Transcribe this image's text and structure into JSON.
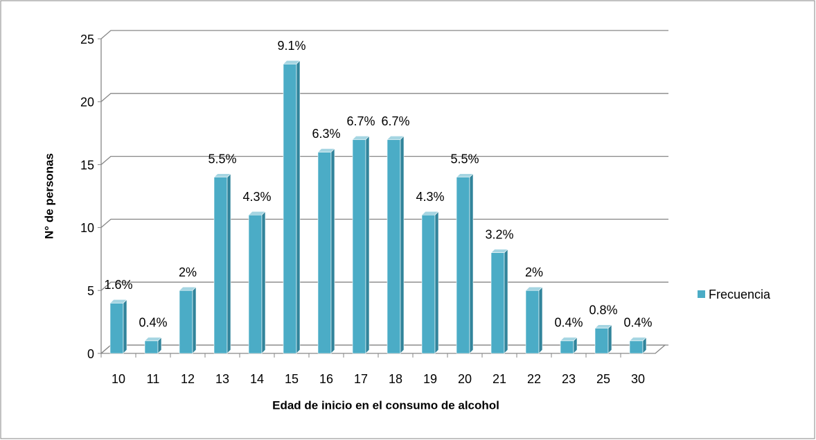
{
  "chart_data": {
    "type": "bar3d",
    "x_label": "Edad de inicio en el consumo de alcohol",
    "y_label": "N° de personas",
    "categories": [
      "10",
      "11",
      "12",
      "13",
      "14",
      "15",
      "16",
      "17",
      "18",
      "19",
      "20",
      "21",
      "22",
      "23",
      "25",
      "30"
    ],
    "series": [
      {
        "name": "Frecuencia",
        "color": "#4bacc6",
        "values": [
          4,
          1,
          5,
          14,
          11,
          23,
          16,
          17,
          17,
          11,
          14,
          8,
          5,
          1,
          2,
          1
        ],
        "percent_labels": [
          "1.6%",
          "0.4%",
          "2%",
          "5.5%",
          "4.3%",
          "9.1%",
          "6.3%",
          "6.7%",
          "6.7%",
          "4.3%",
          "5.5%",
          "3.2%",
          "2%",
          "0.4%",
          "0.8%",
          "0.4%"
        ]
      }
    ],
    "ylim": [
      0,
      25
    ],
    "yticks": [
      0,
      5,
      10,
      15,
      20,
      25
    ],
    "grid": true,
    "legend": "right"
  }
}
